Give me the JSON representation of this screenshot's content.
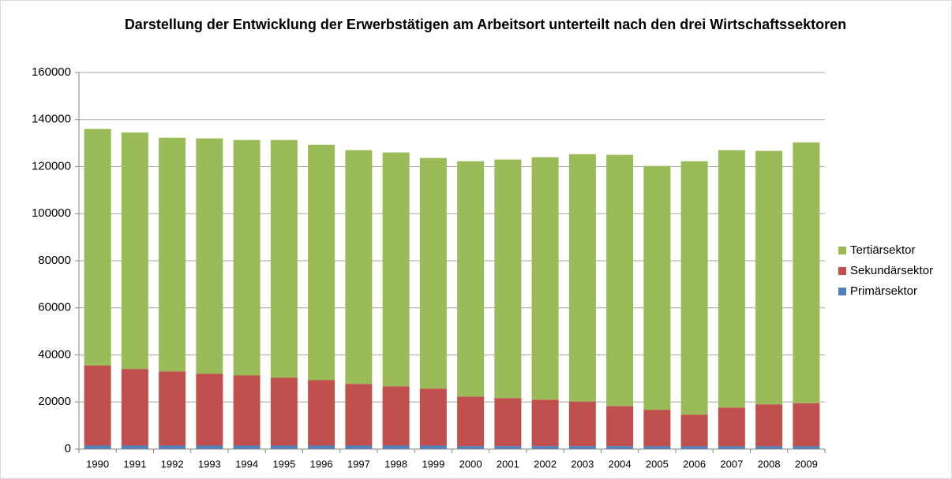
{
  "chart_data": {
    "type": "stacked_bar",
    "title": "Darstellung der Entwicklung der Erwerbstätigen am Arbeitsort unterteilt nach den drei Wirtschaftssektoren",
    "categories": [
      "1990",
      "1991",
      "1992",
      "1993",
      "1994",
      "1995",
      "1996",
      "1997",
      "1998",
      "1999",
      "2000",
      "2001",
      "2002",
      "2003",
      "2004",
      "2005",
      "2006",
      "2007",
      "2008",
      "2009"
    ],
    "series": [
      {
        "name": "Primärsektor",
        "color": "#4f81bd",
        "values": [
          1500,
          1500,
          1500,
          1500,
          1500,
          1500,
          1500,
          1500,
          1500,
          1500,
          1300,
          1300,
          1300,
          1300,
          1300,
          1200,
          1200,
          1200,
          1200,
          1200
        ]
      },
      {
        "name": "Sekundärsektor",
        "color": "#c0504d",
        "values": [
          34000,
          32500,
          31500,
          30500,
          29800,
          28800,
          27800,
          26200,
          25200,
          24200,
          21000,
          20400,
          19700,
          18900,
          17000,
          15500,
          13400,
          16400,
          17800,
          18300
        ]
      },
      {
        "name": "Tertiärsektor",
        "color": "#9bbb59",
        "values": [
          100500,
          100500,
          99300,
          100000,
          100000,
          101000,
          100000,
          99300,
          99300,
          98000,
          100000,
          101300,
          103000,
          105100,
          106700,
          103600,
          107700,
          109400,
          107700,
          110800
        ]
      }
    ],
    "ylim": [
      0,
      160000
    ],
    "yticks": [
      0,
      20000,
      40000,
      60000,
      80000,
      100000,
      120000,
      140000,
      160000
    ],
    "grid": true,
    "legend": "right"
  }
}
